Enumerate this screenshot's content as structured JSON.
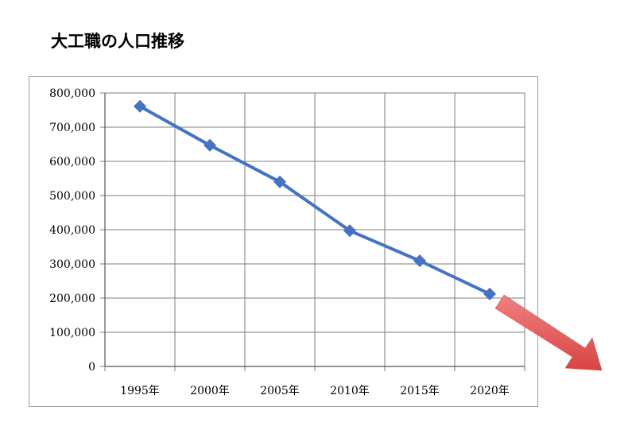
{
  "title": "大工職の人口推移",
  "chart_data": {
    "type": "line",
    "title": "大工職の人口推移",
    "categories": [
      "1995年",
      "2000年",
      "2005年",
      "2010年",
      "2015年",
      "2020年"
    ],
    "series": [
      {
        "values": [
          761000,
          647000,
          540000,
          397000,
          309000,
          212000
        ]
      }
    ],
    "yticks": [
      "800,000",
      "700,000",
      "600,000",
      "500,000",
      "400,000",
      "300,000",
      "200,000",
      "100,000",
      "0"
    ],
    "ylim": [
      0,
      800000
    ],
    "grid": true,
    "colors": {
      "line": "#4472c4",
      "arrow": "#e05050",
      "grid": "#7f7f7f"
    }
  }
}
